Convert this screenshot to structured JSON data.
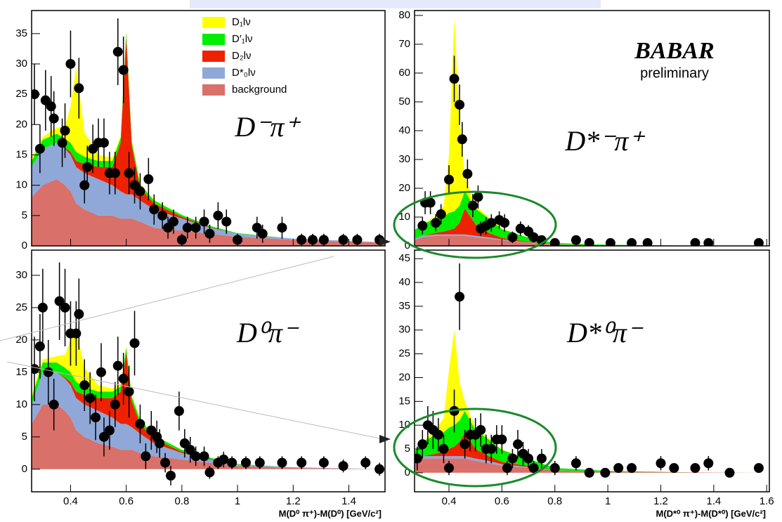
{
  "chart_data": [
    {
      "type": "stacked-area",
      "title": "D⁻π⁺",
      "legend": "top",
      "xlim": [
        0.26,
        1.53
      ],
      "xticks": [
        0.4,
        0.6,
        0.8,
        1,
        1.2,
        1.4
      ],
      "xtick_labels": false,
      "ylim": [
        0,
        38.8
      ],
      "yticks": [
        0,
        5,
        10,
        15,
        20,
        25,
        30,
        35
      ],
      "x": [
        0.26,
        0.3,
        0.35,
        0.38,
        0.4,
        0.42,
        0.45,
        0.5,
        0.55,
        0.58,
        0.6,
        0.62,
        0.65,
        0.7,
        0.8,
        0.9,
        1.0,
        1.2,
        1.53
      ],
      "series": [
        {
          "name": "D₁lν",
          "color": "#ffff00",
          "values": [
            0.5,
            0.5,
            1,
            2,
            6,
            14,
            4,
            1,
            0.5,
            0.3,
            0.3,
            0.2,
            0.2,
            0.1,
            0,
            0,
            0,
            0,
            0
          ]
        },
        {
          "name": "D′₁lν",
          "color": "#00ee00",
          "values": [
            1,
            1.5,
            1.5,
            1.5,
            1.5,
            1.5,
            1.2,
            1,
            1,
            0.8,
            0.8,
            0.7,
            0.6,
            0.5,
            0.3,
            0.2,
            0.1,
            0,
            0
          ]
        },
        {
          "name": "D₂lν",
          "color": "#ee2200",
          "values": [
            0,
            0,
            0,
            0.2,
            0.5,
            1,
            1.5,
            2,
            3,
            8,
            26,
            8,
            2,
            1,
            0.3,
            0.1,
            0,
            0,
            0
          ]
        },
        {
          "name": "D*₀lν",
          "color": "#8fa8d8",
          "values": [
            5,
            6,
            6,
            6,
            6,
            6,
            6,
            6,
            5,
            4.5,
            4,
            4,
            3.5,
            3,
            2,
            1,
            0.5,
            0.2,
            0.1
          ]
        },
        {
          "name": "background",
          "color": "#d9706a",
          "values": [
            8,
            10,
            11,
            10,
            9,
            7,
            6,
            5,
            5,
            4.5,
            4.5,
            4.5,
            4,
            3,
            2.5,
            2,
            1.5,
            1,
            0.5
          ]
        }
      ],
      "points": {
        "x": [
          0.27,
          0.29,
          0.31,
          0.33,
          0.34,
          0.37,
          0.38,
          0.4,
          0.43,
          0.45,
          0.46,
          0.48,
          0.5,
          0.52,
          0.54,
          0.56,
          0.57,
          0.59,
          0.61,
          0.63,
          0.65,
          0.68,
          0.7,
          0.73,
          0.75,
          0.77,
          0.8,
          0.82,
          0.85,
          0.88,
          0.9,
          0.93,
          0.96,
          1.0,
          1.07,
          1.09,
          1.16,
          1.23,
          1.27,
          1.31,
          1.38,
          1.43,
          1.51
        ],
        "values": [
          25,
          16,
          24,
          23,
          21,
          17,
          19,
          30,
          26,
          10,
          13,
          16,
          17,
          17,
          12,
          12,
          32,
          29,
          12,
          10,
          9,
          11,
          6,
          5,
          3,
          4,
          1,
          3,
          3,
          4,
          2,
          5,
          4,
          1,
          3,
          2,
          3,
          1,
          1,
          1,
          1,
          1,
          1
        ],
        "errors": [
          5,
          4,
          5,
          5,
          4.5,
          4,
          4.5,
          5.5,
          5,
          3,
          3.5,
          4,
          4,
          4,
          3.5,
          3.5,
          5.5,
          5.5,
          3.5,
          3,
          3,
          3.5,
          2.5,
          2.2,
          1.8,
          2,
          1,
          1.8,
          1.8,
          2,
          1.5,
          2.2,
          2,
          1,
          1.8,
          1.5,
          1.8,
          1,
          1,
          1,
          1,
          1,
          1
        ]
      }
    },
    {
      "type": "stacked-area",
      "title": "D*⁻π⁺",
      "logo": "BABAR",
      "note": "preliminary",
      "xlim": [
        0.27,
        1.61
      ],
      "xticks": [
        0.4,
        0.6,
        0.8,
        1,
        1.2,
        1.4,
        1.6
      ],
      "xtick_labels": false,
      "ylim": [
        0,
        81.7
      ],
      "yticks": [
        0,
        10,
        20,
        30,
        40,
        50,
        60,
        70,
        80
      ],
      "x": [
        0.27,
        0.3,
        0.35,
        0.38,
        0.4,
        0.42,
        0.44,
        0.46,
        0.5,
        0.55,
        0.6,
        0.7,
        0.8,
        1.0,
        1.3,
        1.61
      ],
      "series": [
        {
          "color": "#ffff00",
          "values": [
            0,
            0,
            1,
            4,
            20,
            67,
            30,
            5,
            1,
            0.5,
            0.2,
            0,
            0,
            0,
            0,
            0
          ]
        },
        {
          "color": "#00ee00",
          "values": [
            3,
            4,
            5,
            5,
            6,
            6,
            6,
            6,
            5.5,
            5,
            3,
            1.5,
            0.5,
            0.2,
            0,
            0
          ]
        },
        {
          "color": "#ee2200",
          "values": [
            0,
            0,
            0.5,
            1,
            1.5,
            2,
            4,
            9,
            4,
            1.5,
            0.5,
            0.2,
            0,
            0,
            0,
            0
          ]
        },
        {
          "color": "#8fa8d8",
          "values": [
            0.5,
            0.5,
            0.5,
            0.5,
            0.5,
            0.5,
            0.5,
            0.5,
            0.5,
            0.5,
            0.3,
            0.2,
            0,
            0,
            0,
            0
          ]
        },
        {
          "color": "#d9706a",
          "values": [
            2,
            3,
            3.5,
            3.5,
            3.5,
            3.5,
            3.5,
            3.5,
            3,
            2.5,
            2,
            1,
            0.5,
            0.2,
            0.1,
            0
          ]
        }
      ],
      "points": {
        "x": [
          0.3,
          0.31,
          0.33,
          0.35,
          0.37,
          0.4,
          0.42,
          0.44,
          0.45,
          0.47,
          0.49,
          0.51,
          0.52,
          0.54,
          0.56,
          0.59,
          0.61,
          0.64,
          0.67,
          0.7,
          0.72,
          0.75,
          0.8,
          0.88,
          0.93,
          1.01,
          1.09,
          1.15,
          1.33,
          1.38,
          1.57
        ],
        "values": [
          7,
          15,
          15,
          8,
          11,
          23,
          58,
          49,
          37,
          25,
          14,
          17,
          6,
          7,
          8,
          9,
          8,
          3,
          6,
          5,
          3,
          2,
          1,
          2,
          1,
          1,
          1,
          1,
          1,
          1,
          1
        ],
        "errors": [
          3,
          4,
          4,
          3,
          3.5,
          5,
          8,
          7,
          6,
          5,
          4,
          4,
          2.5,
          3,
          3,
          3,
          3,
          2,
          2.5,
          2.2,
          1.8,
          1.5,
          1,
          1.5,
          1,
          1,
          1,
          1,
          1,
          1,
          1
        ]
      }
    },
    {
      "type": "stacked-area",
      "title": "D⁰π⁻",
      "xlabel": "M(D⁰ π⁺)-M(D⁰) [GeV/c²]",
      "xlim": [
        0.26,
        1.53
      ],
      "xticks": [
        0.4,
        0.6,
        0.8,
        1,
        1.2,
        1.4
      ],
      "xtick_labels": true,
      "ylim": [
        -3.5,
        33.9
      ],
      "yticks": [
        0,
        5,
        10,
        15,
        20,
        25,
        30
      ],
      "x": [
        0.26,
        0.3,
        0.35,
        0.38,
        0.4,
        0.42,
        0.45,
        0.5,
        0.55,
        0.58,
        0.6,
        0.62,
        0.65,
        0.7,
        0.8,
        0.9,
        1.0,
        1.2,
        1.53
      ],
      "series": [
        {
          "color": "#ffff00",
          "values": [
            0.5,
            0.5,
            1,
            2,
            5,
            8,
            3,
            1,
            0.5,
            0.3,
            0.3,
            0.2,
            0.2,
            0.1,
            0,
            0,
            0,
            0,
            0
          ]
        },
        {
          "color": "#00ee00",
          "values": [
            1,
            1.5,
            1.5,
            1.5,
            1.5,
            1.5,
            1.2,
            1,
            1,
            0.8,
            0.8,
            0.7,
            0.6,
            0.5,
            0.3,
            0.2,
            0.1,
            0,
            0
          ]
        },
        {
          "color": "#ee2200",
          "values": [
            0,
            0,
            0,
            0.2,
            0.5,
            1,
            1.5,
            2,
            3,
            5,
            11,
            4,
            1.5,
            0.7,
            0.2,
            0.1,
            0,
            0,
            0
          ]
        },
        {
          "color": "#8fa8d8",
          "values": [
            3,
            5,
            5,
            5,
            5,
            5,
            5,
            5,
            4.5,
            4,
            4,
            3.5,
            3,
            2,
            1,
            0.5,
            0.2,
            0.1,
            0
          ]
        },
        {
          "color": "#d9706a",
          "values": [
            7,
            10,
            10,
            9,
            8,
            6,
            5,
            4,
            3.5,
            3,
            3,
            3,
            2.5,
            2,
            1.5,
            1,
            0.5,
            0.2,
            0
          ]
        }
      ],
      "points": {
        "x": [
          0.27,
          0.29,
          0.3,
          0.32,
          0.34,
          0.36,
          0.38,
          0.4,
          0.42,
          0.43,
          0.45,
          0.47,
          0.49,
          0.51,
          0.52,
          0.54,
          0.56,
          0.57,
          0.59,
          0.61,
          0.63,
          0.65,
          0.67,
          0.69,
          0.71,
          0.72,
          0.74,
          0.76,
          0.79,
          0.81,
          0.83,
          0.85,
          0.88,
          0.9,
          0.93,
          0.95,
          0.98,
          1.03,
          1.08,
          1.16,
          1.23,
          1.31,
          1.38,
          1.46,
          1.51
        ],
        "values": [
          15.5,
          19,
          25,
          15,
          10,
          26,
          25,
          21,
          21,
          24,
          13,
          11,
          8,
          15,
          5,
          6,
          10,
          16,
          14,
          12,
          19.5,
          7,
          2,
          6,
          5,
          4,
          1,
          -1,
          9,
          4,
          3,
          2,
          2,
          -0.5,
          1,
          1.5,
          1,
          1,
          1,
          1,
          1,
          1,
          0.5,
          1,
          0
        ],
        "errors": [
          5,
          5,
          6,
          5,
          4,
          6,
          6,
          5,
          5,
          5.5,
          4,
          4,
          3.5,
          4.5,
          3,
          3,
          3.5,
          4.5,
          4,
          4,
          5,
          3,
          2,
          3,
          2.5,
          2.2,
          1.5,
          1.5,
          3,
          2.2,
          2,
          1.5,
          1.5,
          1,
          1,
          1.2,
          1,
          1,
          1,
          1,
          1,
          1,
          1,
          1,
          1
        ]
      }
    },
    {
      "type": "stacked-area",
      "title": "D*⁰π⁻",
      "xlabel": "M(D*⁰ π⁺)-M(D*⁰) [GeV/c²]",
      "xlim": [
        0.27,
        1.61
      ],
      "xticks": [
        0.4,
        0.6,
        0.8,
        1,
        1.2,
        1.4,
        1.6
      ],
      "xtick_labels": true,
      "ylim": [
        -4,
        46.8
      ],
      "yticks": [
        0,
        5,
        10,
        15,
        20,
        25,
        30,
        35,
        40,
        45
      ],
      "x": [
        0.27,
        0.3,
        0.35,
        0.38,
        0.4,
        0.42,
        0.44,
        0.46,
        0.5,
        0.55,
        0.6,
        0.7,
        0.8,
        1.0,
        1.3,
        1.61
      ],
      "series": [
        {
          "color": "#ffff00",
          "values": [
            0,
            0,
            1,
            3,
            12,
            20,
            8,
            2,
            0.5,
            0.3,
            0.1,
            0,
            0,
            0,
            0,
            0
          ]
        },
        {
          "color": "#00ee00",
          "values": [
            2,
            3,
            4,
            4,
            4.5,
            4.5,
            4.5,
            4.5,
            4,
            3.5,
            2.5,
            1.5,
            0.5,
            0.2,
            0,
            0
          ]
        },
        {
          "color": "#ee2200",
          "values": [
            0,
            0,
            0.5,
            1,
            1.5,
            2,
            3,
            5,
            2,
            1,
            0.5,
            0.2,
            0,
            0,
            0,
            0
          ]
        },
        {
          "color": "#8fa8d8",
          "values": [
            0.5,
            0.5,
            0.5,
            0.5,
            0.5,
            0.5,
            0.5,
            0.5,
            0.5,
            0.5,
            0.3,
            0.2,
            0,
            0,
            0,
            0
          ]
        },
        {
          "color": "#d9706a",
          "values": [
            2,
            3,
            3,
            3,
            3,
            3,
            3,
            3,
            2.5,
            2,
            1.5,
            1,
            0.5,
            0.2,
            0.1,
            0
          ]
        }
      ],
      "points": {
        "x": [
          0.28,
          0.3,
          0.32,
          0.34,
          0.36,
          0.38,
          0.4,
          0.42,
          0.44,
          0.46,
          0.48,
          0.5,
          0.52,
          0.54,
          0.56,
          0.58,
          0.6,
          0.62,
          0.64,
          0.66,
          0.68,
          0.7,
          0.72,
          0.75,
          0.8,
          0.88,
          0.93,
          0.99,
          1.04,
          1.09,
          1.2,
          1.25,
          1.33,
          1.38,
          1.46,
          1.57
        ],
        "values": [
          3,
          6,
          10,
          9,
          8,
          5,
          1,
          13,
          37,
          6,
          8,
          8,
          9,
          5,
          5,
          7,
          7,
          1,
          3,
          6,
          4,
          3,
          1,
          3,
          1,
          2,
          0,
          0,
          1,
          1,
          2,
          1,
          1,
          2,
          0,
          1
        ],
        "errors": [
          2.5,
          3,
          4,
          4,
          3.5,
          3,
          1.5,
          4.5,
          7,
          3,
          3.5,
          3.5,
          3.5,
          3,
          3,
          3,
          3,
          1.5,
          2,
          3,
          2.5,
          2,
          1.5,
          2,
          1.5,
          1.5,
          1,
          1,
          1,
          1,
          1.5,
          1,
          1,
          1.5,
          1,
          1
        ]
      }
    }
  ]
}
